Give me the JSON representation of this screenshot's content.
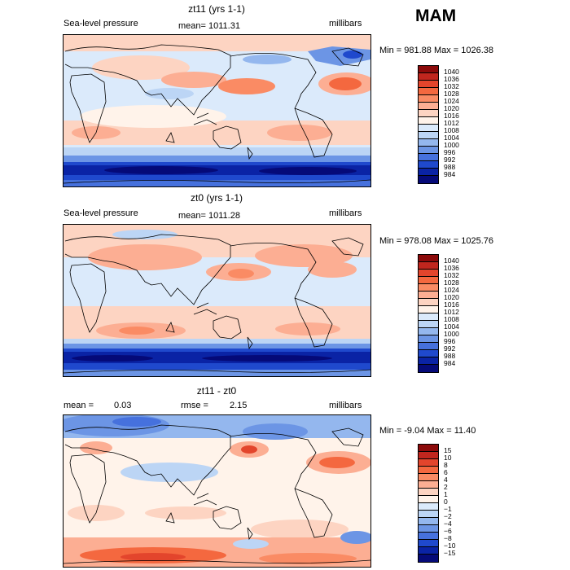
{
  "season": "MAM",
  "chart_data": [
    {
      "type": "heatmap",
      "title": "zt11 (yrs 1-1)",
      "left_label": "Sea-level pressure",
      "stat_label": "mean= 1011.31",
      "units": "millibars",
      "min_max": "Min = 981.88 Max = 1026.38",
      "min": 981.88,
      "max": 1026.38,
      "mean": 1011.31,
      "colorbar": {
        "labels": [
          "1040",
          "1036",
          "1032",
          "1028",
          "1024",
          "1020",
          "1016",
          "1012",
          "1008",
          "1004",
          "1000",
          "996",
          "992",
          "988",
          "984"
        ],
        "colors": [
          "#8c0a0a",
          "#c0261e",
          "#e3452c",
          "#f4683f",
          "#fa8b64",
          "#fcae93",
          "#fdd4c2",
          "#fff3ea",
          "#dbeafb",
          "#bcd5f5",
          "#94b7ee",
          "#6c95e5",
          "#4671dd",
          "#1f49cd",
          "#0a23a5",
          "#050a78"
        ]
      }
    },
    {
      "type": "heatmap",
      "title": "zt0 (yrs 1-1)",
      "left_label": "Sea-level pressure",
      "stat_label": "mean= 1011.28",
      "units": "millibars",
      "min_max": "Min = 978.08 Max = 1025.76",
      "min": 978.08,
      "max": 1025.76,
      "mean": 1011.28,
      "colorbar": {
        "labels": [
          "1040",
          "1036",
          "1032",
          "1028",
          "1024",
          "1020",
          "1016",
          "1012",
          "1008",
          "1004",
          "1000",
          "996",
          "992",
          "988",
          "984"
        ],
        "colors": [
          "#8c0a0a",
          "#c0261e",
          "#e3452c",
          "#f4683f",
          "#fa8b64",
          "#fcae93",
          "#fdd4c2",
          "#fff3ea",
          "#dbeafb",
          "#bcd5f5",
          "#94b7ee",
          "#6c95e5",
          "#4671dd",
          "#1f49cd",
          "#0a23a5",
          "#050a78"
        ]
      }
    },
    {
      "type": "heatmap",
      "title": "zt11 - zt0",
      "mean_label": "mean =",
      "mean_value": "0.03",
      "rmse_label": "rmse =",
      "rmse_value": "2.15",
      "units": "millibars",
      "min_max": "Min = -9.04 Max = 11.40",
      "min": -9.04,
      "max": 11.4,
      "mean": 0.03,
      "rmse": 2.15,
      "colorbar": {
        "labels": [
          "15",
          "10",
          "8",
          "6",
          "4",
          "2",
          "1",
          "0",
          "−1",
          "−2",
          "−4",
          "−6",
          "−8",
          "−10",
          "−15"
        ],
        "colors": [
          "#8c0a0a",
          "#c0261e",
          "#e3452c",
          "#f4683f",
          "#fa8b64",
          "#fcae93",
          "#fdd4c2",
          "#fff3ea",
          "#dbeafb",
          "#bcd5f5",
          "#94b7ee",
          "#6c95e5",
          "#4671dd",
          "#1f49cd",
          "#0a23a5",
          "#050a78"
        ]
      }
    }
  ]
}
